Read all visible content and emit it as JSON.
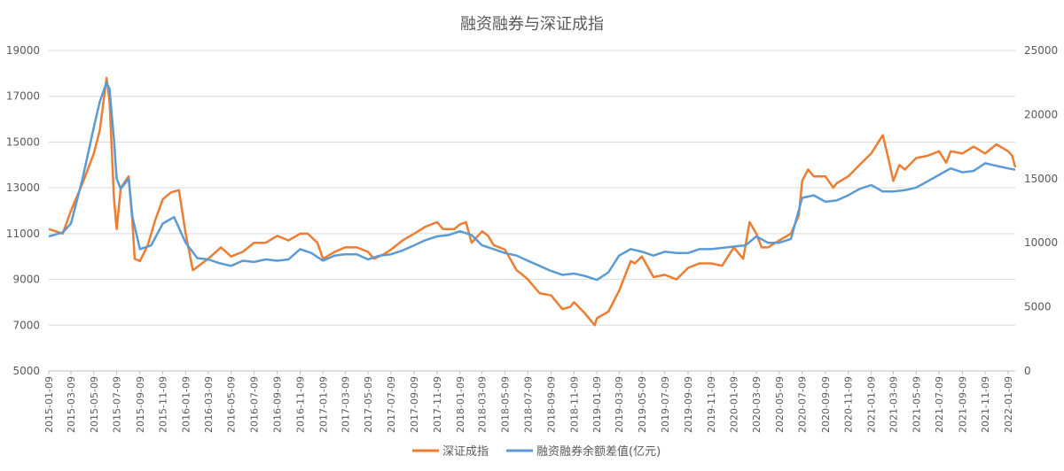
{
  "chart_data": {
    "type": "line",
    "title": "融资融券与深证成指",
    "xlabel": "",
    "ylabel": "",
    "grid": true,
    "legend_position": "bottom",
    "y_left": {
      "ylim": [
        5000,
        19000
      ],
      "ticks": [
        "5000",
        "7000",
        "9000",
        "11000",
        "13000",
        "15000",
        "17000",
        "19000"
      ]
    },
    "y_right": {
      "ylim": [
        0,
        25000
      ],
      "ticks": [
        "0",
        "5000",
        "10000",
        "15000",
        "20000",
        "25000"
      ]
    },
    "x_tick_labels": [
      "2015-01-09",
      "2015-03-09",
      "2015-05-09",
      "2015-07-09",
      "2015-09-09",
      "2015-11-09",
      "2016-01-09",
      "2016-03-09",
      "2016-05-09",
      "2016-07-09",
      "2016-09-09",
      "2016-11-09",
      "2017-01-09",
      "2017-03-09",
      "2017-05-09",
      "2017-07-09",
      "2017-09-09",
      "2017-11-09",
      "2018-01-09",
      "2018-03-09",
      "2018-05-09",
      "2018-07-09",
      "2018-09-09",
      "2018-11-09",
      "2019-01-09",
      "2019-03-09",
      "2019-05-09",
      "2019-07-09",
      "2019-09-09",
      "2019-11-09",
      "2020-01-09",
      "2020-03-09",
      "2020-05-09",
      "2020-07-09",
      "2020-09-09",
      "2020-11-09",
      "2021-01-09",
      "2021-03-09",
      "2021-05-09",
      "2021-07-09",
      "2021-09-09",
      "2021-11-09",
      "2022-01-09"
    ],
    "series": [
      {
        "name": "深证成指",
        "axis": "left",
        "color": "#ED7D31",
        "x": [
          "2015-01-09",
          "2015-02-15",
          "2015-03-09",
          "2015-04-09",
          "2015-05-09",
          "2015-05-25",
          "2015-06-12",
          "2015-06-20",
          "2015-07-02",
          "2015-07-09",
          "2015-07-20",
          "2015-08-10",
          "2015-08-20",
          "2015-08-26",
          "2015-09-09",
          "2015-09-30",
          "2015-10-20",
          "2015-11-09",
          "2015-12-01",
          "2015-12-22",
          "2016-01-09",
          "2016-01-28",
          "2016-03-09",
          "2016-04-12",
          "2016-05-09",
          "2016-06-09",
          "2016-07-09",
          "2016-08-09",
          "2016-09-09",
          "2016-10-09",
          "2016-11-09",
          "2016-11-29",
          "2016-12-25",
          "2017-01-09",
          "2017-02-09",
          "2017-03-09",
          "2017-04-09",
          "2017-05-09",
          "2017-05-25",
          "2017-06-20",
          "2017-07-09",
          "2017-08-09",
          "2017-09-09",
          "2017-10-09",
          "2017-11-09",
          "2017-11-25",
          "2017-12-25",
          "2018-01-09",
          "2018-01-25",
          "2018-02-09",
          "2018-03-09",
          "2018-03-25",
          "2018-04-09",
          "2018-05-09",
          "2018-06-09",
          "2018-06-25",
          "2018-07-09",
          "2018-08-09",
          "2018-09-09",
          "2018-10-09",
          "2018-10-30",
          "2018-11-09",
          "2018-12-09",
          "2019-01-03",
          "2019-01-09",
          "2019-02-09",
          "2019-03-09",
          "2019-04-09",
          "2019-04-20",
          "2019-05-09",
          "2019-06-09",
          "2019-07-09",
          "2019-08-09",
          "2019-09-09",
          "2019-10-09",
          "2019-11-09",
          "2019-12-09",
          "2020-01-09",
          "2020-02-03",
          "2020-02-20",
          "2020-03-09",
          "2020-03-23",
          "2020-04-09",
          "2020-05-09",
          "2020-06-09",
          "2020-06-30",
          "2020-07-09",
          "2020-07-25",
          "2020-08-09",
          "2020-09-09",
          "2020-09-30",
          "2020-10-09",
          "2020-11-09",
          "2020-12-09",
          "2021-01-09",
          "2021-02-09",
          "2021-02-25",
          "2021-03-09",
          "2021-03-25",
          "2021-04-09",
          "2021-05-09",
          "2021-06-09",
          "2021-07-09",
          "2021-07-28",
          "2021-08-09",
          "2021-09-09",
          "2021-10-09",
          "2021-11-09",
          "2021-12-09",
          "2022-01-09",
          "2022-01-20",
          "2022-01-28"
        ],
        "values": [
          11200,
          11000,
          12000,
          13200,
          14500,
          15500,
          17800,
          16800,
          12500,
          11200,
          13000,
          13500,
          11500,
          9900,
          9800,
          10500,
          11600,
          12500,
          12800,
          12900,
          11000,
          9400,
          9900,
          10400,
          10000,
          10200,
          10600,
          10600,
          10900,
          10700,
          11000,
          11000,
          10600,
          9900,
          10200,
          10400,
          10400,
          10200,
          9900,
          10100,
          10300,
          10700,
          11000,
          11300,
          11500,
          11200,
          11200,
          11400,
          11500,
          10600,
          11100,
          10900,
          10500,
          10300,
          9400,
          9200,
          9000,
          8400,
          8300,
          7700,
          7800,
          8000,
          7500,
          7000,
          7300,
          7600,
          8500,
          9800,
          9700,
          10000,
          9100,
          9200,
          9000,
          9500,
          9700,
          9700,
          9600,
          10400,
          9900,
          11500,
          11000,
          10400,
          10400,
          10700,
          11000,
          11800,
          13300,
          13800,
          13500,
          13500,
          13000,
          13200,
          13500,
          14000,
          14500,
          15300,
          14200,
          13300,
          14000,
          13800,
          14300,
          14400,
          14600,
          14100,
          14600,
          14500,
          14800,
          14500,
          14900,
          14600,
          14400,
          13900
        ]
      },
      {
        "name": "融资融券余额差值(亿元)",
        "axis": "right",
        "color": "#5B9BD5",
        "x": [
          "2015-01-09",
          "2015-02-15",
          "2015-03-09",
          "2015-04-09",
          "2015-05-09",
          "2015-05-25",
          "2015-06-12",
          "2015-06-20",
          "2015-07-02",
          "2015-07-09",
          "2015-07-20",
          "2015-08-10",
          "2015-08-20",
          "2015-09-09",
          "2015-10-09",
          "2015-11-09",
          "2015-12-09",
          "2016-01-09",
          "2016-02-09",
          "2016-03-09",
          "2016-04-09",
          "2016-05-09",
          "2016-06-09",
          "2016-07-09",
          "2016-08-09",
          "2016-09-09",
          "2016-10-09",
          "2016-11-09",
          "2016-12-09",
          "2017-01-09",
          "2017-02-09",
          "2017-03-09",
          "2017-04-09",
          "2017-05-09",
          "2017-06-09",
          "2017-07-09",
          "2017-08-09",
          "2017-09-09",
          "2017-10-09",
          "2017-11-09",
          "2017-12-09",
          "2018-01-09",
          "2018-02-09",
          "2018-03-09",
          "2018-04-09",
          "2018-05-09",
          "2018-06-09",
          "2018-07-09",
          "2018-08-09",
          "2018-09-09",
          "2018-10-09",
          "2018-11-09",
          "2018-12-09",
          "2019-01-09",
          "2019-02-09",
          "2019-03-09",
          "2019-04-09",
          "2019-05-09",
          "2019-06-09",
          "2019-07-09",
          "2019-08-09",
          "2019-09-09",
          "2019-10-09",
          "2019-11-09",
          "2019-12-09",
          "2020-01-09",
          "2020-02-09",
          "2020-03-09",
          "2020-04-09",
          "2020-05-09",
          "2020-06-09",
          "2020-07-09",
          "2020-08-09",
          "2020-09-09",
          "2020-10-09",
          "2020-11-09",
          "2020-12-09",
          "2021-01-09",
          "2021-02-09",
          "2021-03-09",
          "2021-04-09",
          "2021-05-09",
          "2021-06-09",
          "2021-07-09",
          "2021-08-09",
          "2021-09-09",
          "2021-10-09",
          "2021-11-09",
          "2021-12-09",
          "2022-01-09",
          "2022-01-28"
        ],
        "values": [
          10500,
          10800,
          11500,
          15000,
          19000,
          21000,
          22500,
          22000,
          18000,
          15000,
          14200,
          15000,
          12000,
          9500,
          9800,
          11500,
          12000,
          10000,
          8800,
          8700,
          8400,
          8200,
          8600,
          8500,
          8700,
          8600,
          8700,
          9500,
          9200,
          8600,
          9000,
          9100,
          9100,
          8700,
          9000,
          9100,
          9400,
          9800,
          10200,
          10500,
          10600,
          10900,
          10600,
          9800,
          9500,
          9200,
          9000,
          8600,
          8200,
          7800,
          7500,
          7600,
          7400,
          7100,
          7700,
          9000,
          9500,
          9300,
          9000,
          9300,
          9200,
          9200,
          9500,
          9500,
          9600,
          9700,
          9800,
          10500,
          10000,
          10000,
          10300,
          13500,
          13700,
          13200,
          13300,
          13700,
          14200,
          14500,
          14000,
          14000,
          14100,
          14300,
          14800,
          15300,
          15800,
          15500,
          15600,
          16200,
          16000,
          15800,
          15700
        ]
      }
    ]
  }
}
